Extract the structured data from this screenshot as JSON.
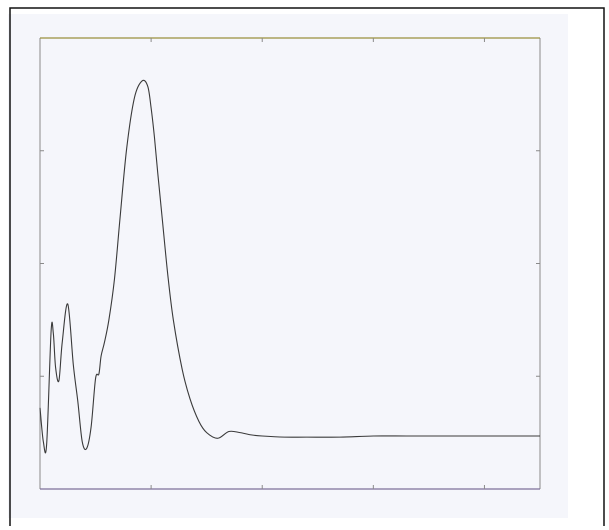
{
  "page": {
    "background": "#ffffff",
    "scan_background": "#f5f6fb",
    "border_color": "#111111"
  },
  "chart_data": {
    "type": "line",
    "title": "",
    "xlabel": "",
    "ylabel": "",
    "xlim": [
      0,
      4.5
    ],
    "ylim": [
      0,
      4
    ],
    "grid": false,
    "legend": "none",
    "frame_colors": {
      "axes": "#8a8a8a",
      "top_edge": "#9a8f3c",
      "bottom_edge": "#7d6f9a",
      "line": "#3a3a3a"
    },
    "xticks": [
      1,
      2,
      3,
      4
    ],
    "yticks": [
      1,
      2,
      3
    ],
    "series": [
      {
        "name": "",
        "x": [
          0.0,
          0.03,
          0.06,
          0.1,
          0.12,
          0.14,
          0.17,
          0.2,
          0.25,
          0.3,
          0.34,
          0.38,
          0.42,
          0.46,
          0.5,
          0.53,
          0.55,
          0.58,
          0.62,
          0.67,
          0.72,
          0.78,
          0.85,
          0.92,
          0.97,
          1.0,
          1.03,
          1.06,
          1.1,
          1.15,
          1.2,
          1.28,
          1.35,
          1.43,
          1.5,
          1.6,
          1.7,
          1.8,
          1.9,
          2.0,
          2.2,
          2.4,
          2.7,
          3.0,
          3.3,
          3.6,
          3.9,
          4.2,
          4.5
        ],
        "y": [
          0.72,
          0.42,
          0.4,
          1.4,
          1.38,
          1.08,
          0.96,
          1.3,
          1.64,
          1.1,
          0.78,
          0.42,
          0.36,
          0.55,
          0.98,
          1.02,
          1.18,
          1.3,
          1.5,
          1.86,
          2.4,
          3.02,
          3.47,
          3.62,
          3.57,
          3.38,
          3.12,
          2.8,
          2.4,
          1.9,
          1.5,
          1.06,
          0.8,
          0.6,
          0.5,
          0.45,
          0.51,
          0.5,
          0.48,
          0.47,
          0.46,
          0.46,
          0.46,
          0.47,
          0.47,
          0.47,
          0.47,
          0.47,
          0.47
        ]
      }
    ]
  }
}
